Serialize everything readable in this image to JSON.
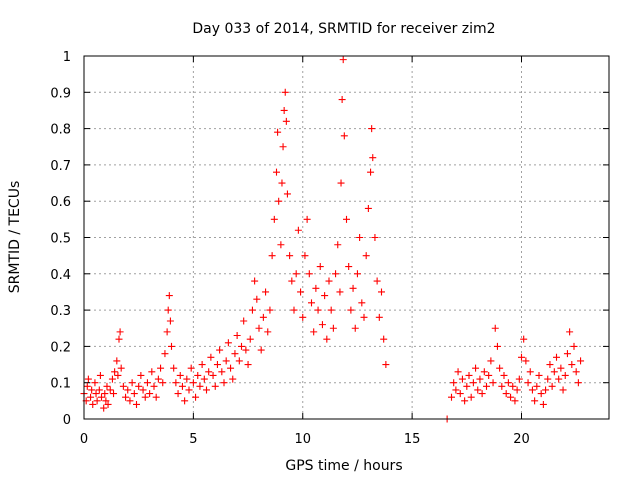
{
  "chart_data": {
    "type": "scatter",
    "title": "Day 033 of 2014, SRMTID for receiver zim2",
    "xlabel": "GPS time / hours",
    "ylabel": "SRMTID / TECUs",
    "xlim": [
      0,
      24
    ],
    "ylim": [
      0,
      1
    ],
    "xticks": [
      0,
      5,
      10,
      15,
      20
    ],
    "xtick_labels": [
      "0",
      "5",
      "10",
      "15",
      "20"
    ],
    "yticks": [
      0,
      0.1,
      0.2,
      0.3,
      0.4,
      0.5,
      0.6,
      0.7,
      0.8,
      0.9,
      1
    ],
    "ytick_labels": [
      "0",
      "0.1",
      "0.2",
      "0.3",
      "0.4",
      "0.5",
      "0.6",
      "0.7",
      "0.8",
      "0.9",
      "1"
    ],
    "grid": true,
    "marker": "+",
    "marker_color": "#ff0000",
    "series": [
      {
        "name": "SRMTID",
        "points": [
          [
            0.0,
            0.07
          ],
          [
            0.1,
            0.05
          ],
          [
            0.15,
            0.09
          ],
          [
            0.2,
            0.11
          ],
          [
            0.3,
            0.06
          ],
          [
            0.35,
            0.08
          ],
          [
            0.4,
            0.04
          ],
          [
            0.5,
            0.1
          ],
          [
            0.55,
            0.07
          ],
          [
            0.6,
            0.05
          ],
          [
            0.7,
            0.08
          ],
          [
            0.75,
            0.12
          ],
          [
            0.8,
            0.06
          ],
          [
            0.9,
            0.03
          ],
          [
            0.95,
            0.07
          ],
          [
            1.0,
            0.05
          ],
          [
            1.05,
            0.09
          ],
          [
            1.1,
            0.04
          ],
          [
            1.2,
            0.08
          ],
          [
            1.3,
            0.11
          ],
          [
            1.35,
            0.07
          ],
          [
            1.4,
            0.13
          ],
          [
            1.5,
            0.16
          ],
          [
            1.55,
            0.12
          ],
          [
            1.6,
            0.22
          ],
          [
            1.65,
            0.24
          ],
          [
            1.7,
            0.14
          ],
          [
            1.8,
            0.09
          ],
          [
            1.9,
            0.06
          ],
          [
            2.0,
            0.08
          ],
          [
            2.1,
            0.05
          ],
          [
            2.2,
            0.1
          ],
          [
            2.3,
            0.07
          ],
          [
            2.4,
            0.04
          ],
          [
            2.5,
            0.09
          ],
          [
            2.6,
            0.12
          ],
          [
            2.7,
            0.08
          ],
          [
            2.8,
            0.06
          ],
          [
            2.9,
            0.1
          ],
          [
            3.0,
            0.07
          ],
          [
            3.1,
            0.13
          ],
          [
            3.2,
            0.09
          ],
          [
            3.3,
            0.06
          ],
          [
            3.4,
            0.11
          ],
          [
            3.5,
            0.14
          ],
          [
            3.6,
            0.1
          ],
          [
            3.7,
            0.18
          ],
          [
            3.8,
            0.24
          ],
          [
            3.85,
            0.3
          ],
          [
            3.9,
            0.34
          ],
          [
            3.95,
            0.27
          ],
          [
            4.0,
            0.2
          ],
          [
            4.1,
            0.14
          ],
          [
            4.2,
            0.1
          ],
          [
            4.3,
            0.07
          ],
          [
            4.4,
            0.12
          ],
          [
            4.5,
            0.09
          ],
          [
            4.6,
            0.05
          ],
          [
            4.7,
            0.11
          ],
          [
            4.8,
            0.08
          ],
          [
            4.9,
            0.14
          ],
          [
            5.0,
            0.1
          ],
          [
            5.1,
            0.06
          ],
          [
            5.2,
            0.12
          ],
          [
            5.3,
            0.09
          ],
          [
            5.4,
            0.15
          ],
          [
            5.5,
            0.11
          ],
          [
            5.6,
            0.08
          ],
          [
            5.7,
            0.13
          ],
          [
            5.8,
            0.17
          ],
          [
            5.9,
            0.12
          ],
          [
            6.0,
            0.09
          ],
          [
            6.1,
            0.15
          ],
          [
            6.2,
            0.19
          ],
          [
            6.3,
            0.13
          ],
          [
            6.4,
            0.1
          ],
          [
            6.5,
            0.16
          ],
          [
            6.6,
            0.21
          ],
          [
            6.7,
            0.14
          ],
          [
            6.8,
            0.11
          ],
          [
            6.9,
            0.18
          ],
          [
            7.0,
            0.23
          ],
          [
            7.1,
            0.16
          ],
          [
            7.2,
            0.2
          ],
          [
            7.3,
            0.27
          ],
          [
            7.4,
            0.19
          ],
          [
            7.5,
            0.15
          ],
          [
            7.6,
            0.22
          ],
          [
            7.7,
            0.3
          ],
          [
            7.8,
            0.38
          ],
          [
            7.9,
            0.33
          ],
          [
            8.0,
            0.25
          ],
          [
            8.1,
            0.19
          ],
          [
            8.2,
            0.28
          ],
          [
            8.3,
            0.35
          ],
          [
            8.4,
            0.24
          ],
          [
            8.5,
            0.3
          ],
          [
            8.6,
            0.45
          ],
          [
            8.7,
            0.55
          ],
          [
            8.8,
            0.68
          ],
          [
            8.85,
            0.79
          ],
          [
            8.9,
            0.6
          ],
          [
            9.0,
            0.48
          ],
          [
            9.05,
            0.65
          ],
          [
            9.1,
            0.75
          ],
          [
            9.15,
            0.85
          ],
          [
            9.2,
            0.9
          ],
          [
            9.25,
            0.82
          ],
          [
            9.3,
            0.62
          ],
          [
            9.4,
            0.45
          ],
          [
            9.5,
            0.38
          ],
          [
            9.6,
            0.3
          ],
          [
            9.7,
            0.4
          ],
          [
            9.8,
            0.52
          ],
          [
            9.9,
            0.35
          ],
          [
            10.0,
            0.28
          ],
          [
            10.1,
            0.45
          ],
          [
            10.2,
            0.55
          ],
          [
            10.3,
            0.4
          ],
          [
            10.4,
            0.32
          ],
          [
            10.5,
            0.24
          ],
          [
            10.6,
            0.36
          ],
          [
            10.7,
            0.3
          ],
          [
            10.8,
            0.42
          ],
          [
            10.9,
            0.26
          ],
          [
            11.0,
            0.34
          ],
          [
            11.1,
            0.22
          ],
          [
            11.2,
            0.38
          ],
          [
            11.3,
            0.3
          ],
          [
            11.4,
            0.25
          ],
          [
            11.5,
            0.4
          ],
          [
            11.6,
            0.48
          ],
          [
            11.7,
            0.35
          ],
          [
            11.75,
            0.65
          ],
          [
            11.8,
            0.88
          ],
          [
            11.85,
            0.99
          ],
          [
            11.9,
            0.78
          ],
          [
            12.0,
            0.55
          ],
          [
            12.1,
            0.42
          ],
          [
            12.2,
            0.3
          ],
          [
            12.3,
            0.36
          ],
          [
            12.4,
            0.25
          ],
          [
            12.5,
            0.4
          ],
          [
            12.6,
            0.5
          ],
          [
            12.7,
            0.32
          ],
          [
            12.8,
            0.28
          ],
          [
            12.9,
            0.45
          ],
          [
            13.0,
            0.58
          ],
          [
            13.1,
            0.68
          ],
          [
            13.15,
            0.8
          ],
          [
            13.2,
            0.72
          ],
          [
            13.3,
            0.5
          ],
          [
            13.4,
            0.38
          ],
          [
            13.5,
            0.28
          ],
          [
            13.6,
            0.35
          ],
          [
            13.7,
            0.22
          ],
          [
            13.8,
            0.15
          ],
          [
            16.6,
            0.0
          ],
          [
            16.8,
            0.06
          ],
          [
            16.9,
            0.1
          ],
          [
            17.0,
            0.08
          ],
          [
            17.1,
            0.13
          ],
          [
            17.2,
            0.07
          ],
          [
            17.3,
            0.11
          ],
          [
            17.4,
            0.05
          ],
          [
            17.5,
            0.09
          ],
          [
            17.6,
            0.12
          ],
          [
            17.7,
            0.06
          ],
          [
            17.8,
            0.1
          ],
          [
            17.9,
            0.14
          ],
          [
            18.0,
            0.08
          ],
          [
            18.1,
            0.11
          ],
          [
            18.2,
            0.07
          ],
          [
            18.3,
            0.13
          ],
          [
            18.4,
            0.09
          ],
          [
            18.5,
            0.12
          ],
          [
            18.6,
            0.16
          ],
          [
            18.7,
            0.1
          ],
          [
            18.8,
            0.25
          ],
          [
            18.9,
            0.2
          ],
          [
            19.0,
            0.14
          ],
          [
            19.1,
            0.09
          ],
          [
            19.2,
            0.12
          ],
          [
            19.3,
            0.07
          ],
          [
            19.4,
            0.1
          ],
          [
            19.5,
            0.06
          ],
          [
            19.6,
            0.09
          ],
          [
            19.7,
            0.05
          ],
          [
            19.8,
            0.08
          ],
          [
            19.9,
            0.11
          ],
          [
            20.0,
            0.17
          ],
          [
            20.1,
            0.22
          ],
          [
            20.2,
            0.16
          ],
          [
            20.3,
            0.1
          ],
          [
            20.4,
            0.13
          ],
          [
            20.5,
            0.08
          ],
          [
            20.6,
            0.05
          ],
          [
            20.7,
            0.09
          ],
          [
            20.8,
            0.12
          ],
          [
            20.9,
            0.07
          ],
          [
            21.0,
            0.04
          ],
          [
            21.1,
            0.08
          ],
          [
            21.2,
            0.11
          ],
          [
            21.3,
            0.15
          ],
          [
            21.4,
            0.09
          ],
          [
            21.5,
            0.13
          ],
          [
            21.6,
            0.17
          ],
          [
            21.7,
            0.11
          ],
          [
            21.8,
            0.14
          ],
          [
            21.9,
            0.08
          ],
          [
            22.0,
            0.12
          ],
          [
            22.1,
            0.18
          ],
          [
            22.2,
            0.24
          ],
          [
            22.3,
            0.15
          ],
          [
            22.4,
            0.2
          ],
          [
            22.5,
            0.13
          ],
          [
            22.6,
            0.1
          ],
          [
            22.7,
            0.16
          ]
        ]
      }
    ]
  }
}
